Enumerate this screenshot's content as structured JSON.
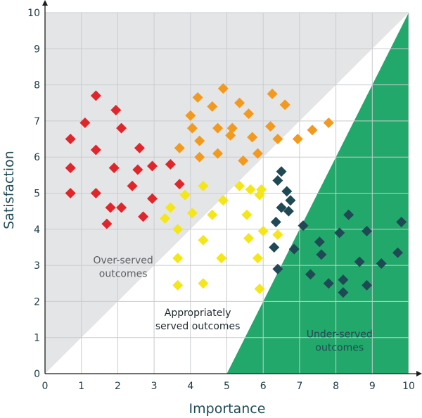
{
  "chart_data": {
    "type": "scatter",
    "title": "",
    "xlabel": "Importance",
    "ylabel": "Satisfaction",
    "xlim": [
      0,
      10
    ],
    "ylim": [
      0,
      10
    ],
    "xticks": [
      "0",
      "1",
      "2",
      "3",
      "4",
      "5",
      "6",
      "7",
      "8",
      "9",
      "10"
    ],
    "yticks": [
      "0",
      "1",
      "2",
      "3",
      "4",
      "5",
      "6",
      "7",
      "8",
      "9",
      "10"
    ],
    "grid": true,
    "regions": [
      {
        "name": "Over-served outcomes",
        "label_lines": [
          "Over-served",
          "outcomes"
        ],
        "color": "#e4e5e7",
        "text_color": "#5a5e62",
        "label_at": [
          2.15,
          3.05
        ]
      },
      {
        "name": "Appropriately served outcomes",
        "label_lines": [
          "Appropriately",
          "served outcomes"
        ],
        "color": "#ffffff",
        "text_color": "#1f2a30",
        "label_at": [
          4.2,
          1.6
        ]
      },
      {
        "name": "Under-served outcomes",
        "label_lines": [
          "Under-served",
          "outcomes"
        ],
        "color": "#22a86a",
        "text_color": "#1f4a55",
        "label_at": [
          8.1,
          1.0
        ]
      }
    ],
    "series": [
      {
        "name": "red",
        "color": "#e0262b",
        "points": [
          [
            0.7,
            6.5
          ],
          [
            0.7,
            5.7
          ],
          [
            0.7,
            5.0
          ],
          [
            1.1,
            6.95
          ],
          [
            1.4,
            7.7
          ],
          [
            1.4,
            6.2
          ],
          [
            1.4,
            5.0
          ],
          [
            1.7,
            4.15
          ],
          [
            1.8,
            4.6
          ],
          [
            1.9,
            5.7
          ],
          [
            1.95,
            7.3
          ],
          [
            2.1,
            6.8
          ],
          [
            2.1,
            4.6
          ],
          [
            2.4,
            5.2
          ],
          [
            2.55,
            5.65
          ],
          [
            2.6,
            6.25
          ],
          [
            2.7,
            4.35
          ],
          [
            2.95,
            5.75
          ],
          [
            2.95,
            4.85
          ],
          [
            3.45,
            5.8
          ],
          [
            3.7,
            5.25
          ]
        ]
      },
      {
        "name": "orange",
        "color": "#f39a1e",
        "points": [
          [
            3.7,
            6.25
          ],
          [
            4.0,
            7.15
          ],
          [
            4.05,
            6.8
          ],
          [
            4.2,
            7.65
          ],
          [
            4.25,
            6.45
          ],
          [
            4.25,
            6.0
          ],
          [
            4.6,
            7.4
          ],
          [
            4.75,
            6.8
          ],
          [
            4.75,
            6.1
          ],
          [
            4.9,
            7.9
          ],
          [
            5.1,
            6.6
          ],
          [
            5.15,
            6.8
          ],
          [
            5.35,
            7.5
          ],
          [
            5.45,
            5.9
          ],
          [
            5.6,
            7.2
          ],
          [
            5.7,
            6.55
          ],
          [
            5.85,
            6.1
          ],
          [
            6.2,
            6.85
          ],
          [
            6.25,
            7.75
          ],
          [
            6.4,
            6.5
          ],
          [
            6.6,
            7.45
          ],
          [
            6.95,
            6.5
          ],
          [
            7.35,
            6.75
          ],
          [
            7.8,
            6.95
          ]
        ]
      },
      {
        "name": "yellow",
        "color": "#f5e619",
        "points": [
          [
            3.3,
            4.3
          ],
          [
            3.45,
            4.6
          ],
          [
            3.65,
            4.0
          ],
          [
            3.65,
            3.2
          ],
          [
            3.65,
            2.45
          ],
          [
            3.85,
            4.95
          ],
          [
            4.05,
            4.45
          ],
          [
            4.35,
            5.2
          ],
          [
            4.35,
            3.7
          ],
          [
            4.35,
            2.5
          ],
          [
            4.6,
            4.4
          ],
          [
            4.85,
            3.2
          ],
          [
            4.9,
            4.8
          ],
          [
            5.35,
            5.2
          ],
          [
            5.55,
            4.4
          ],
          [
            5.6,
            3.75
          ],
          [
            5.65,
            5.1
          ],
          [
            5.9,
            4.95
          ],
          [
            5.95,
            5.1
          ],
          [
            5.85,
            3.2
          ],
          [
            5.9,
            2.35
          ],
          [
            6.0,
            3.95
          ],
          [
            6.4,
            3.85
          ]
        ]
      },
      {
        "name": "dark-teal",
        "color": "#1f4a55",
        "points": [
          [
            6.3,
            3.5
          ],
          [
            6.35,
            4.2
          ],
          [
            6.4,
            5.35
          ],
          [
            6.4,
            2.9
          ],
          [
            6.5,
            5.6
          ],
          [
            6.5,
            4.6
          ],
          [
            6.65,
            5.05
          ],
          [
            6.7,
            4.5
          ],
          [
            6.75,
            4.8
          ],
          [
            6.85,
            3.45
          ],
          [
            7.1,
            4.1
          ],
          [
            7.3,
            2.75
          ],
          [
            7.55,
            3.65
          ],
          [
            7.6,
            3.3
          ],
          [
            7.8,
            2.5
          ],
          [
            8.1,
            3.9
          ],
          [
            8.2,
            2.6
          ],
          [
            8.2,
            2.25
          ],
          [
            8.35,
            4.4
          ],
          [
            8.65,
            3.1
          ],
          [
            8.85,
            3.95
          ],
          [
            8.85,
            2.45
          ],
          [
            9.25,
            3.05
          ],
          [
            9.7,
            3.35
          ],
          [
            9.8,
            4.2
          ]
        ]
      }
    ]
  }
}
